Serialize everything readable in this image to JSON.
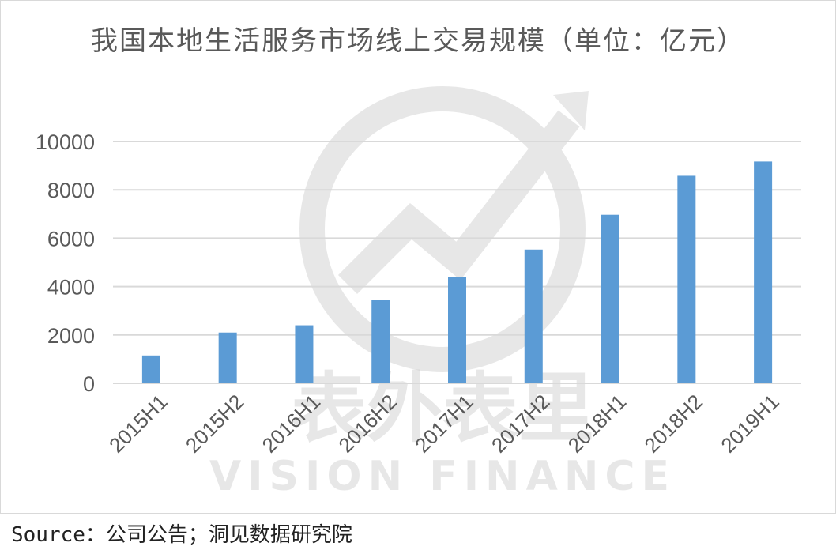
{
  "chart_data": {
    "type": "bar",
    "title": "我国本地生活服务市场线上交易规模（单位：亿元）",
    "xlabel": "",
    "ylabel": "",
    "categories": [
      "2015H1",
      "2015H2",
      "2016H1",
      "2016H2",
      "2017H1",
      "2017H2",
      "2018H1",
      "2018H2",
      "2019H1"
    ],
    "series": [
      {
        "values": [
          1150,
          2100,
          2400,
          3450,
          4380,
          5530,
          6970,
          8580,
          9170
        ]
      }
    ],
    "ylim": [
      0,
      10000
    ],
    "yticks": [
      0,
      2000,
      4000,
      6000,
      8000,
      10000
    ],
    "grid": true,
    "bar_color": "#5b9bd5"
  },
  "source": "Source：公司公告；洞见数据研究院",
  "watermark": {
    "text_cn": "表外表里",
    "text_en": "VISION FINANCE"
  }
}
